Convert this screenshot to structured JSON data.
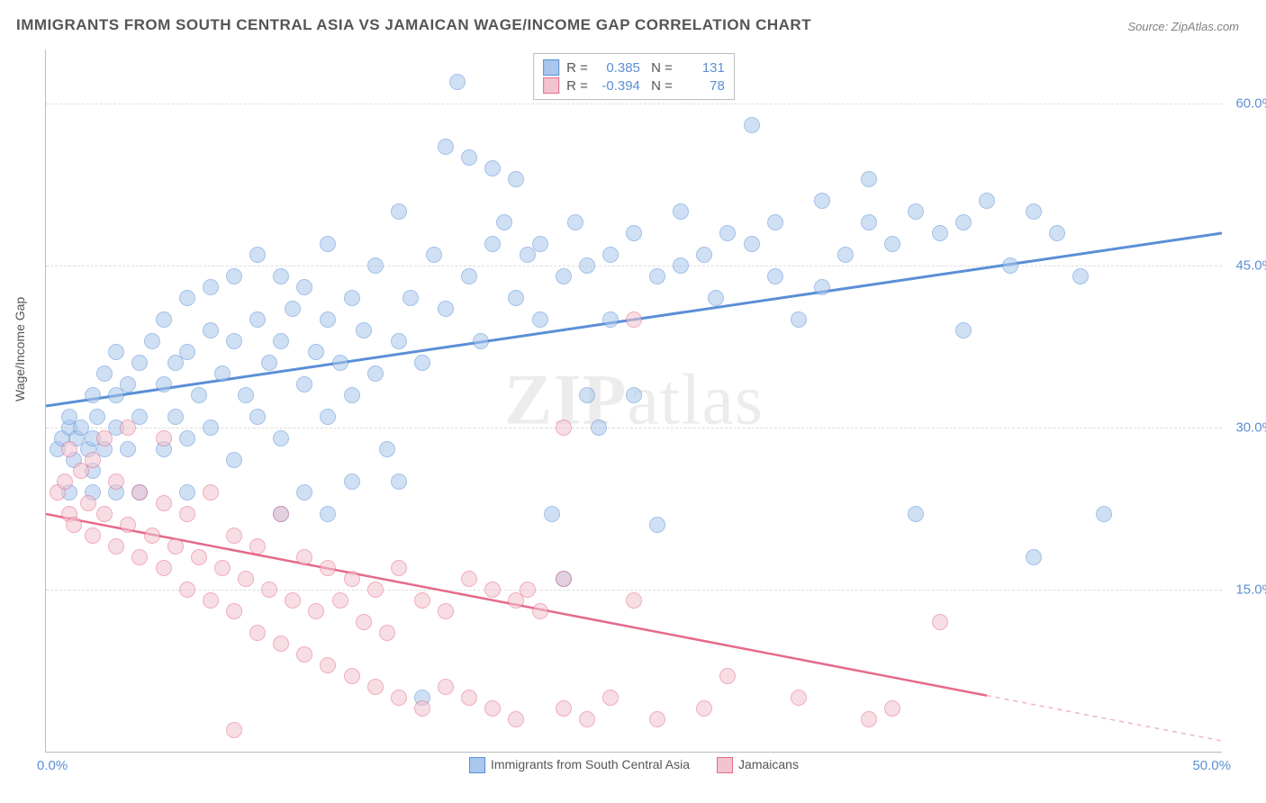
{
  "title": "IMMIGRANTS FROM SOUTH CENTRAL ASIA VS JAMAICAN WAGE/INCOME GAP CORRELATION CHART",
  "source": "Source: ZipAtlas.com",
  "ylabel": "Wage/Income Gap",
  "watermark_bold": "ZIP",
  "watermark_rest": "atlas",
  "chart": {
    "type": "scatter",
    "xlim": [
      0,
      50
    ],
    "ylim": [
      0,
      65
    ],
    "x_ticks": [
      {
        "value": 0,
        "label": "0.0%"
      },
      {
        "value": 50,
        "label": "50.0%"
      }
    ],
    "y_ticks": [
      {
        "value": 15,
        "label": "15.0%"
      },
      {
        "value": 30,
        "label": "30.0%"
      },
      {
        "value": 45,
        "label": "45.0%"
      },
      {
        "value": 60,
        "label": "60.0%"
      }
    ],
    "background_color": "#ffffff",
    "grid_color": "#dddddd",
    "axis_color": "#bbbbbb",
    "tick_color": "#5b8fd6",
    "title_color": "#555555",
    "title_fontsize": 17,
    "label_fontsize": 14,
    "tick_fontsize": 15,
    "marker_size": 16,
    "marker_opacity": 0.55,
    "series": [
      {
        "name": "Immigrants from South Central Asia",
        "fill_color": "#a9c7ec",
        "stroke_color": "#5b8fd6",
        "r": 0.385,
        "n": 131,
        "trend": {
          "x1": 0,
          "y1": 32,
          "x2": 50,
          "y2": 48,
          "solid_until": 50,
          "width": 3
        },
        "points": [
          [
            0.5,
            28
          ],
          [
            0.7,
            29
          ],
          [
            1,
            30
          ],
          [
            1,
            31
          ],
          [
            1.2,
            27
          ],
          [
            1.3,
            29
          ],
          [
            1.5,
            30
          ],
          [
            1.8,
            28
          ],
          [
            2,
            29
          ],
          [
            2,
            33
          ],
          [
            2,
            26
          ],
          [
            2.2,
            31
          ],
          [
            2.5,
            28
          ],
          [
            2.5,
            35
          ],
          [
            3,
            30
          ],
          [
            3,
            33
          ],
          [
            3,
            37
          ],
          [
            3.5,
            28
          ],
          [
            3.5,
            34
          ],
          [
            4,
            24
          ],
          [
            4,
            31
          ],
          [
            4,
            36
          ],
          [
            4.5,
            38
          ],
          [
            5,
            28
          ],
          [
            5,
            34
          ],
          [
            5,
            40
          ],
          [
            5.5,
            31
          ],
          [
            5.5,
            36
          ],
          [
            6,
            29
          ],
          [
            6,
            37
          ],
          [
            6,
            42
          ],
          [
            6.5,
            33
          ],
          [
            7,
            30
          ],
          [
            7,
            39
          ],
          [
            7,
            43
          ],
          [
            7.5,
            35
          ],
          [
            8,
            27
          ],
          [
            8,
            38
          ],
          [
            8,
            44
          ],
          [
            8.5,
            33
          ],
          [
            9,
            31
          ],
          [
            9,
            40
          ],
          [
            9,
            46
          ],
          [
            9.5,
            36
          ],
          [
            10,
            29
          ],
          [
            10,
            38
          ],
          [
            10,
            44
          ],
          [
            10.5,
            41
          ],
          [
            11,
            34
          ],
          [
            11,
            43
          ],
          [
            11.5,
            37
          ],
          [
            12,
            31
          ],
          [
            12,
            40
          ],
          [
            12,
            47
          ],
          [
            12.5,
            36
          ],
          [
            13,
            33
          ],
          [
            13,
            42
          ],
          [
            13.5,
            39
          ],
          [
            14,
            35
          ],
          [
            14,
            45
          ],
          [
            14.5,
            28
          ],
          [
            15,
            38
          ],
          [
            15,
            50
          ],
          [
            15.5,
            42
          ],
          [
            16,
            36
          ],
          [
            16.5,
            46
          ],
          [
            17,
            56
          ],
          [
            17,
            41
          ],
          [
            17.5,
            62
          ],
          [
            18,
            44
          ],
          [
            18,
            55
          ],
          [
            18.5,
            38
          ],
          [
            19,
            47
          ],
          [
            19,
            54
          ],
          [
            19.5,
            49
          ],
          [
            20,
            42
          ],
          [
            20,
            53
          ],
          [
            20.5,
            46
          ],
          [
            21,
            40
          ],
          [
            21,
            47
          ],
          [
            21.5,
            22
          ],
          [
            22,
            44
          ],
          [
            22,
            16
          ],
          [
            22.5,
            49
          ],
          [
            23,
            33
          ],
          [
            23,
            45
          ],
          [
            23.5,
            30
          ],
          [
            24,
            46
          ],
          [
            24,
            40
          ],
          [
            25,
            33
          ],
          [
            25,
            48
          ],
          [
            26,
            21
          ],
          [
            26,
            44
          ],
          [
            27,
            45
          ],
          [
            27,
            50
          ],
          [
            28,
            46
          ],
          [
            28.5,
            42
          ],
          [
            29,
            48
          ],
          [
            30,
            47
          ],
          [
            30,
            58
          ],
          [
            31,
            49
          ],
          [
            31,
            44
          ],
          [
            32,
            40
          ],
          [
            33,
            51
          ],
          [
            33,
            43
          ],
          [
            34,
            46
          ],
          [
            35,
            49
          ],
          [
            35,
            53
          ],
          [
            36,
            47
          ],
          [
            37,
            50
          ],
          [
            37,
            22
          ],
          [
            38,
            48
          ],
          [
            39,
            39
          ],
          [
            39,
            49
          ],
          [
            40,
            51
          ],
          [
            41,
            45
          ],
          [
            42,
            50
          ],
          [
            42,
            18
          ],
          [
            43,
            48
          ],
          [
            44,
            44
          ],
          [
            45,
            22
          ],
          [
            16,
            5
          ],
          [
            15,
            25
          ],
          [
            13,
            25
          ],
          [
            12,
            22
          ],
          [
            11,
            24
          ],
          [
            10,
            22
          ],
          [
            6,
            24
          ],
          [
            1,
            24
          ],
          [
            2,
            24
          ],
          [
            3,
            24
          ]
        ]
      },
      {
        "name": "Jamaicans",
        "fill_color": "#f2c4cf",
        "stroke_color": "#e56a8a",
        "r": -0.394,
        "n": 78,
        "trend": {
          "x1": 0,
          "y1": 22,
          "x2": 50,
          "y2": 1,
          "solid_until": 40,
          "width": 2.5
        },
        "points": [
          [
            0.5,
            24
          ],
          [
            0.8,
            25
          ],
          [
            1,
            22
          ],
          [
            1,
            28
          ],
          [
            1.2,
            21
          ],
          [
            1.5,
            26
          ],
          [
            1.8,
            23
          ],
          [
            2,
            20
          ],
          [
            2,
            27
          ],
          [
            2.5,
            22
          ],
          [
            2.5,
            29
          ],
          [
            3,
            19
          ],
          [
            3,
            25
          ],
          [
            3.5,
            21
          ],
          [
            3.5,
            30
          ],
          [
            4,
            18
          ],
          [
            4,
            24
          ],
          [
            4.5,
            20
          ],
          [
            5,
            17
          ],
          [
            5,
            23
          ],
          [
            5,
            29
          ],
          [
            5.5,
            19
          ],
          [
            6,
            15
          ],
          [
            6,
            22
          ],
          [
            6.5,
            18
          ],
          [
            7,
            14
          ],
          [
            7,
            24
          ],
          [
            7.5,
            17
          ],
          [
            8,
            13
          ],
          [
            8,
            20
          ],
          [
            8.5,
            16
          ],
          [
            9,
            11
          ],
          [
            9,
            19
          ],
          [
            9.5,
            15
          ],
          [
            10,
            10
          ],
          [
            10,
            22
          ],
          [
            10.5,
            14
          ],
          [
            11,
            9
          ],
          [
            11,
            18
          ],
          [
            11.5,
            13
          ],
          [
            12,
            8
          ],
          [
            12,
            17
          ],
          [
            12.5,
            14
          ],
          [
            13,
            7
          ],
          [
            13,
            16
          ],
          [
            13.5,
            12
          ],
          [
            14,
            6
          ],
          [
            14,
            15
          ],
          [
            14.5,
            11
          ],
          [
            15,
            5
          ],
          [
            15,
            17
          ],
          [
            16,
            4
          ],
          [
            16,
            14
          ],
          [
            17,
            6
          ],
          [
            17,
            13
          ],
          [
            18,
            5
          ],
          [
            18,
            16
          ],
          [
            19,
            15
          ],
          [
            19,
            4
          ],
          [
            20,
            14
          ],
          [
            20,
            3
          ],
          [
            20.5,
            15
          ],
          [
            21,
            13
          ],
          [
            22,
            16
          ],
          [
            22,
            4
          ],
          [
            23,
            3
          ],
          [
            24,
            5
          ],
          [
            25,
            14
          ],
          [
            25,
            40
          ],
          [
            26,
            3
          ],
          [
            28,
            4
          ],
          [
            29,
            7
          ],
          [
            32,
            5
          ],
          [
            35,
            3
          ],
          [
            36,
            4
          ],
          [
            38,
            12
          ],
          [
            22,
            30
          ],
          [
            8,
            2
          ]
        ]
      }
    ],
    "legend_bottom": [
      {
        "label": "Immigrants from South Central Asia",
        "fill": "#a9c7ec",
        "stroke": "#5b8fd6"
      },
      {
        "label": "Jamaicans",
        "fill": "#f2c4cf",
        "stroke": "#e56a8a"
      }
    ]
  }
}
